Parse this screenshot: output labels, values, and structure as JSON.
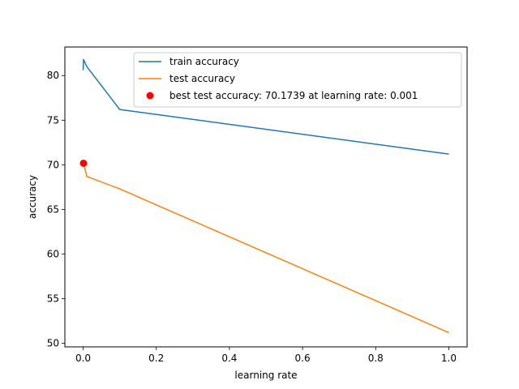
{
  "chart_data": {
    "type": "line",
    "xlabel": "learning rate",
    "ylabel": "accuracy",
    "xlim": [
      -0.05,
      1.05
    ],
    "ylim": [
      49.6,
      83.2
    ],
    "xticks": [
      0.0,
      0.2,
      0.4,
      0.6,
      0.8,
      1.0
    ],
    "xtick_labels": [
      "0.0",
      "0.2",
      "0.4",
      "0.6",
      "0.8",
      "1.0"
    ],
    "yticks": [
      50,
      55,
      60,
      65,
      70,
      75,
      80
    ],
    "ytick_labels": [
      "50",
      "55",
      "60",
      "65",
      "70",
      "75",
      "80"
    ],
    "grid": false,
    "legend_position": "top-right",
    "series": [
      {
        "name": "train accuracy",
        "color": "#1f77b4",
        "x": [
          0.0001,
          0.001,
          0.01,
          0.1,
          1.0
        ],
        "y": [
          80.6,
          81.8,
          81.0,
          76.2,
          71.2
        ]
      },
      {
        "name": "test accuracy",
        "color": "#ff7f0e",
        "x": [
          0.0001,
          0.001,
          0.01,
          0.1,
          1.0
        ],
        "y": [
          70.1,
          70.17,
          68.7,
          67.3,
          51.2
        ]
      }
    ],
    "best_point": {
      "name": "best test accuracy: 70.1739 at learning rate: 0.001",
      "color": "#ff0000",
      "x": 0.001,
      "y": 70.1739
    }
  }
}
